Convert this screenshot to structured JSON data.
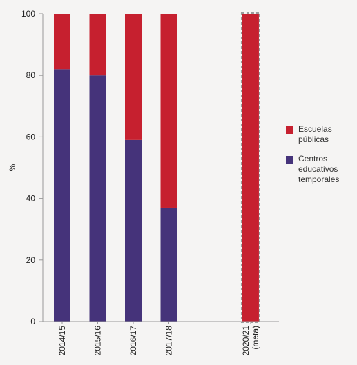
{
  "chart_data": {
    "type": "bar",
    "stacked": true,
    "categories": [
      "2014/15",
      "2015/16",
      "2016/17",
      "2017/18",
      "2020/21 (meta)"
    ],
    "category_positions": [
      0,
      1,
      2,
      3,
      5.3
    ],
    "series": [
      {
        "name": "Centros educativos temporales",
        "color": "#45337a",
        "values": [
          82,
          80,
          59,
          37,
          0
        ]
      },
      {
        "name": "Escuelas públicas",
        "color": "#c6202f",
        "values": [
          18,
          20,
          41,
          63,
          100
        ]
      }
    ],
    "target_category": "2020/21 (meta)",
    "ylabel": "%",
    "xlabel": "",
    "ylim": [
      0,
      100
    ],
    "yticks": [
      0,
      20,
      40,
      60,
      80,
      100
    ],
    "grid": false,
    "legend_position": "right",
    "legend_order": [
      "Escuelas públicas",
      "Centros educativos temporales"
    ]
  }
}
